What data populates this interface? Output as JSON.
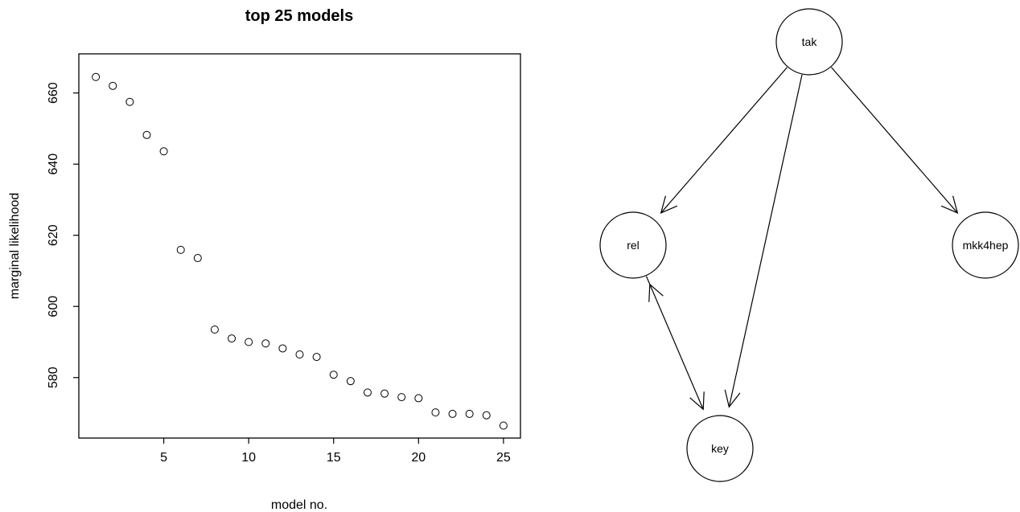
{
  "chart_data": [
    {
      "type": "scatter",
      "title": "top 25 models",
      "xlabel": "model no.",
      "ylabel": "marginal likelihood",
      "xlim": [
        0,
        26
      ],
      "ylim": [
        563,
        671
      ],
      "xticks": [
        5,
        10,
        15,
        20,
        25
      ],
      "yticks": [
        580,
        600,
        620,
        640,
        660
      ],
      "marker": "open-circle",
      "grid": false,
      "x": [
        1,
        2,
        3,
        4,
        5,
        6,
        7,
        8,
        9,
        10,
        11,
        12,
        13,
        14,
        15,
        16,
        17,
        18,
        19,
        20,
        21,
        22,
        23,
        24,
        25
      ],
      "y": [
        664.5,
        662,
        657.5,
        648.2,
        643.6,
        615.9,
        613.6,
        593.5,
        591,
        590,
        589.6,
        588.2,
        586.5,
        585.8,
        580.8,
        579,
        575.8,
        575.5,
        574.5,
        574.2,
        570.2,
        569.8,
        569.8,
        569.4,
        566.5
      ]
    },
    {
      "type": "network",
      "nodes": [
        {
          "id": "tak",
          "label": "tak"
        },
        {
          "id": "rel",
          "label": "rel"
        },
        {
          "id": "mkk4hep",
          "label": "mkk4hep"
        },
        {
          "id": "key",
          "label": "key"
        }
      ],
      "edges": [
        {
          "from": "tak",
          "to": "rel",
          "directed": true
        },
        {
          "from": "tak",
          "to": "mkk4hep",
          "directed": true
        },
        {
          "from": "tak",
          "to": "key",
          "directed": true
        },
        {
          "from": "rel",
          "to": "key",
          "directed": true,
          "bidirectional": true
        }
      ]
    }
  ]
}
